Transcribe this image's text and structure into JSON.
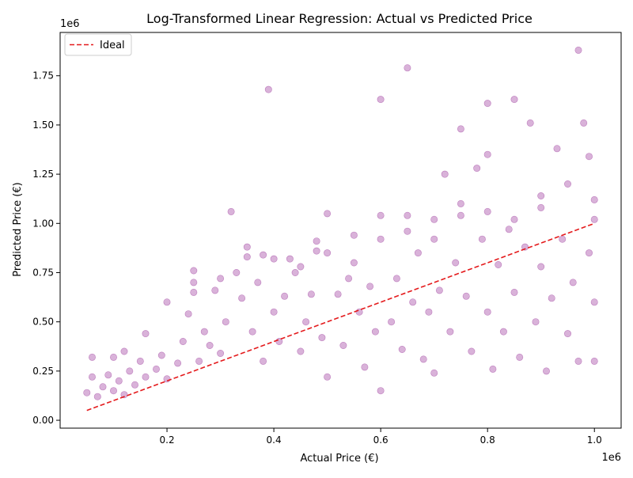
{
  "chart_data": {
    "type": "scatter",
    "title": "Log-Transformed Linear Regression: Actual vs Predicted Price",
    "xlabel": "Actual Price (€)",
    "ylabel": "Predicted Price (€)",
    "x_offset_label": "1e6",
    "y_offset_label": "1e6",
    "xlim": [
      0.0,
      1.05
    ],
    "ylim": [
      -0.04,
      1.97
    ],
    "x_ticks": [
      0.2,
      0.4,
      0.6,
      0.8,
      1.0
    ],
    "x_tick_labels": [
      "0.2",
      "0.4",
      "0.6",
      "0.8",
      "1.0"
    ],
    "y_ticks": [
      0.0,
      0.25,
      0.5,
      0.75,
      1.0,
      1.25,
      1.5,
      1.75
    ],
    "y_tick_labels": [
      "0.00",
      "0.25",
      "0.50",
      "0.75",
      "1.00",
      "1.25",
      "1.50",
      "1.75"
    ],
    "grid": false,
    "legend_position": "top-left",
    "series": [
      {
        "name": "",
        "kind": "scatter",
        "color": "#800080",
        "alpha": 0.3,
        "points": [
          [
            0.05,
            0.14
          ],
          [
            0.06,
            0.22
          ],
          [
            0.06,
            0.32
          ],
          [
            0.07,
            0.12
          ],
          [
            0.08,
            0.17
          ],
          [
            0.09,
            0.23
          ],
          [
            0.1,
            0.15
          ],
          [
            0.1,
            0.32
          ],
          [
            0.11,
            0.2
          ],
          [
            0.12,
            0.13
          ],
          [
            0.12,
            0.35
          ],
          [
            0.13,
            0.25
          ],
          [
            0.14,
            0.18
          ],
          [
            0.15,
            0.3
          ],
          [
            0.16,
            0.44
          ],
          [
            0.16,
            0.22
          ],
          [
            0.18,
            0.26
          ],
          [
            0.19,
            0.33
          ],
          [
            0.2,
            0.6
          ],
          [
            0.2,
            0.21
          ],
          [
            0.22,
            0.29
          ],
          [
            0.23,
            0.4
          ],
          [
            0.24,
            0.54
          ],
          [
            0.25,
            0.76
          ],
          [
            0.25,
            0.7
          ],
          [
            0.25,
            0.65
          ],
          [
            0.26,
            0.3
          ],
          [
            0.27,
            0.45
          ],
          [
            0.28,
            0.38
          ],
          [
            0.29,
            0.66
          ],
          [
            0.3,
            0.72
          ],
          [
            0.3,
            0.34
          ],
          [
            0.31,
            0.5
          ],
          [
            0.32,
            1.06
          ],
          [
            0.33,
            0.75
          ],
          [
            0.34,
            0.62
          ],
          [
            0.35,
            0.88
          ],
          [
            0.35,
            0.83
          ],
          [
            0.36,
            0.45
          ],
          [
            0.37,
            0.7
          ],
          [
            0.38,
            0.84
          ],
          [
            0.38,
            0.3
          ],
          [
            0.39,
            1.68
          ],
          [
            0.4,
            0.82
          ],
          [
            0.4,
            0.55
          ],
          [
            0.41,
            0.4
          ],
          [
            0.42,
            0.63
          ],
          [
            0.43,
            0.82
          ],
          [
            0.44,
            0.75
          ],
          [
            0.45,
            0.35
          ],
          [
            0.45,
            0.78
          ],
          [
            0.46,
            0.5
          ],
          [
            0.47,
            0.64
          ],
          [
            0.48,
            0.91
          ],
          [
            0.48,
            0.86
          ],
          [
            0.49,
            0.42
          ],
          [
            0.5,
            1.05
          ],
          [
            0.5,
            0.85
          ],
          [
            0.5,
            0.22
          ],
          [
            0.52,
            0.64
          ],
          [
            0.53,
            0.38
          ],
          [
            0.54,
            0.72
          ],
          [
            0.55,
            0.8
          ],
          [
            0.55,
            0.94
          ],
          [
            0.56,
            0.55
          ],
          [
            0.57,
            0.27
          ],
          [
            0.58,
            0.68
          ],
          [
            0.59,
            0.45
          ],
          [
            0.6,
            1.63
          ],
          [
            0.6,
            1.04
          ],
          [
            0.6,
            0.92
          ],
          [
            0.6,
            0.15
          ],
          [
            0.62,
            0.5
          ],
          [
            0.63,
            0.72
          ],
          [
            0.64,
            0.36
          ],
          [
            0.65,
            1.79
          ],
          [
            0.65,
            1.04
          ],
          [
            0.65,
            0.96
          ],
          [
            0.66,
            0.6
          ],
          [
            0.67,
            0.85
          ],
          [
            0.68,
            0.31
          ],
          [
            0.69,
            0.55
          ],
          [
            0.7,
            1.02
          ],
          [
            0.7,
            0.92
          ],
          [
            0.7,
            0.24
          ],
          [
            0.71,
            0.66
          ],
          [
            0.72,
            1.25
          ],
          [
            0.73,
            0.45
          ],
          [
            0.74,
            0.8
          ],
          [
            0.75,
            1.48
          ],
          [
            0.75,
            1.1
          ],
          [
            0.75,
            1.04
          ],
          [
            0.76,
            0.63
          ],
          [
            0.77,
            0.35
          ],
          [
            0.78,
            1.28
          ],
          [
            0.79,
            0.92
          ],
          [
            0.8,
            1.61
          ],
          [
            0.8,
            1.35
          ],
          [
            0.8,
            1.06
          ],
          [
            0.8,
            0.55
          ],
          [
            0.81,
            0.26
          ],
          [
            0.82,
            0.79
          ],
          [
            0.83,
            0.45
          ],
          [
            0.84,
            0.97
          ],
          [
            0.85,
            1.63
          ],
          [
            0.85,
            1.02
          ],
          [
            0.85,
            0.65
          ],
          [
            0.86,
            0.32
          ],
          [
            0.87,
            0.88
          ],
          [
            0.88,
            1.51
          ],
          [
            0.89,
            0.5
          ],
          [
            0.9,
            1.14
          ],
          [
            0.9,
            1.08
          ],
          [
            0.9,
            0.78
          ],
          [
            0.91,
            0.25
          ],
          [
            0.92,
            0.62
          ],
          [
            0.93,
            1.38
          ],
          [
            0.94,
            0.92
          ],
          [
            0.95,
            1.2
          ],
          [
            0.95,
            0.44
          ],
          [
            0.96,
            0.7
          ],
          [
            0.97,
            1.88
          ],
          [
            0.97,
            0.3
          ],
          [
            0.98,
            1.51
          ],
          [
            0.99,
            0.85
          ],
          [
            0.99,
            1.34
          ],
          [
            1.0,
            1.12
          ],
          [
            1.0,
            1.02
          ],
          [
            1.0,
            0.6
          ],
          [
            1.0,
            0.3
          ]
        ]
      },
      {
        "name": "Ideal",
        "kind": "line",
        "color": "#e41a1c",
        "dashed": true,
        "x": [
          0.05,
          1.0
        ],
        "y": [
          0.05,
          1.0
        ]
      }
    ]
  }
}
